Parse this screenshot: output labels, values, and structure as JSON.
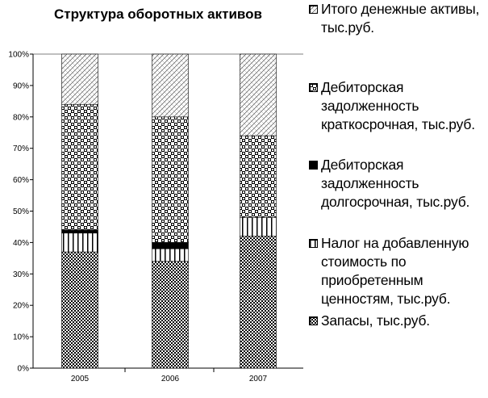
{
  "chart_data": {
    "type": "bar",
    "stacked": true,
    "title": "Структура оборотных активов",
    "categories": [
      "2005",
      "2006",
      "2007"
    ],
    "ylim": [
      0,
      100
    ],
    "yticks": [
      "0%",
      "10%",
      "20%",
      "30%",
      "40%",
      "50%",
      "60%",
      "70%",
      "80%",
      "90%",
      "100%"
    ],
    "grid": false,
    "legend_position": "right",
    "series": [
      {
        "name": "Запасы, тыс.руб.",
        "pattern": "fine-check",
        "values": [
          37,
          34,
          42
        ]
      },
      {
        "name": "Налог на добавленную стоимость по приобретенным ценностям, тыс.руб.",
        "pattern": "vertical-lines",
        "values": [
          6,
          4,
          6
        ]
      },
      {
        "name": "Дебиторская задолженность долгосрочная, тыс.руб.",
        "pattern": "solid-black",
        "values": [
          1,
          2,
          0
        ]
      },
      {
        "name": "Дебиторская задолженность краткосрочная, тыс.руб.",
        "pattern": "checker",
        "values": [
          40,
          40,
          26
        ]
      },
      {
        "name": "Итого денежные активы, тыс.руб.",
        "pattern": "light-hatch",
        "values": [
          16,
          20,
          26
        ]
      }
    ]
  }
}
